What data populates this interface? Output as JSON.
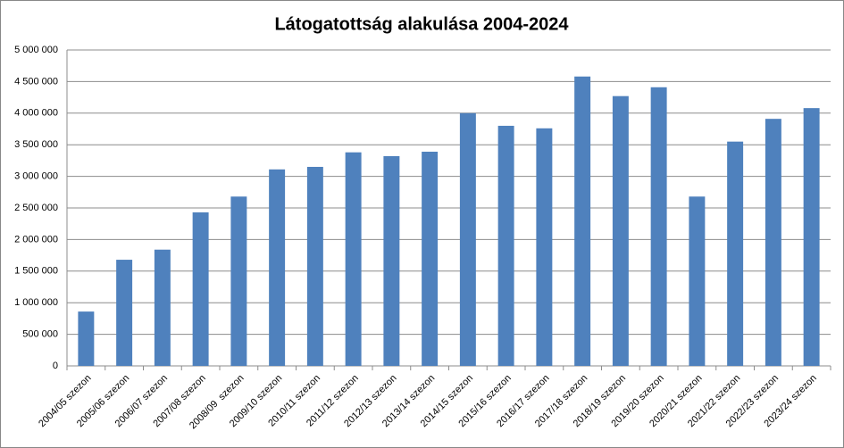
{
  "chart_data": {
    "type": "bar",
    "title": "Látogatottság alakulása 2004-2024",
    "categories": [
      "2004/05 szezon",
      "2005/06 szezon",
      "2006/07 szezon",
      "2007/08 szezon",
      "2008/09  szezon",
      "2009/10 szezon",
      "2010/11 szezon",
      "2011/12 szezon",
      "2012/13 szezon",
      "2013/14 szezon",
      "2014/15 szezon",
      "2015/16 szezon",
      "2016/17 szezon",
      "2017/18 szezon",
      "2018/19 szezon",
      "2019/20 szezon",
      "2020/21 szezon",
      "2021/22 szezon",
      "2022/23 szezon",
      "2023/24 szezon"
    ],
    "values": [
      860000,
      1680000,
      1840000,
      2430000,
      2680000,
      3110000,
      3150000,
      3380000,
      3320000,
      3390000,
      4000000,
      3800000,
      3760000,
      4580000,
      4270000,
      4410000,
      2680000,
      3550000,
      3910000,
      4080000
    ],
    "color": "#4f81bd",
    "ylim": [
      0,
      5000000
    ],
    "yticks": [
      0,
      {
        "value": 500000,
        "label": "500 000"
      },
      {
        "value": 1000000,
        "label": "1 000 000"
      },
      {
        "value": 1500000,
        "label": "1 500 000"
      },
      {
        "value": 2000000,
        "label": "2 000 000"
      },
      {
        "value": 2500000,
        "label": "2 500 000"
      },
      {
        "value": 3000000,
        "label": "3 000 000"
      },
      {
        "value": 3500000,
        "label": "3 500 000"
      },
      {
        "value": 4000000,
        "label": "4 000 000"
      },
      {
        "value": 4500000,
        "label": "4 500 000"
      },
      {
        "value": 5000000,
        "label": "5 000 000"
      }
    ],
    "grid": true
  }
}
